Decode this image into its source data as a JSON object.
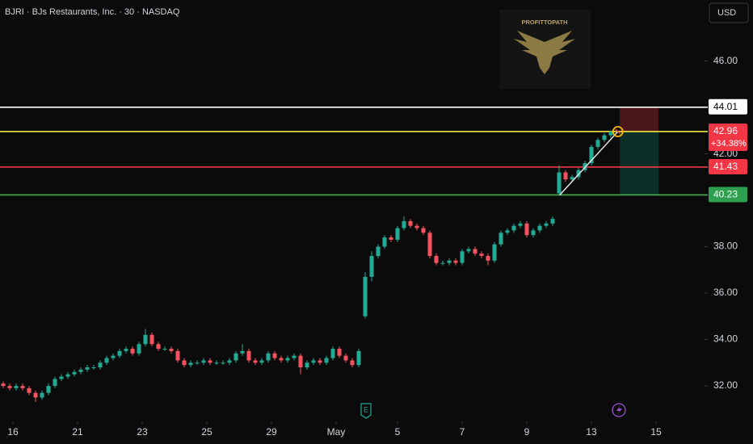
{
  "header": {
    "title": "BJRI · BJs Restaurants, Inc. · 30 · NASDAQ",
    "currency": "USD",
    "logo": "PROFITTOPATH",
    "earnings_marker": "E"
  },
  "chart_data": {
    "type": "candlestick",
    "up_color": "#22ab94",
    "down_color": "#f7525f",
    "open": [
      32.1,
      32.0,
      31.9,
      32.0,
      31.9,
      31.7,
      31.5,
      31.7,
      32.0,
      32.3,
      32.4,
      32.5,
      32.6,
      32.7,
      32.8,
      32.8,
      33.0,
      33.2,
      33.3,
      33.5,
      33.6,
      33.4,
      33.8,
      34.2,
      33.8,
      33.6,
      33.6,
      33.5,
      33.1,
      32.9,
      33.0,
      33.0,
      33.1,
      33.0,
      33.0,
      33.0,
      33.1,
      33.4,
      33.5,
      33.1,
      33.0,
      33.1,
      33.4,
      33.2,
      33.1,
      33.2,
      33.3,
      32.8,
      33.0,
      33.1,
      33.0,
      33.2,
      33.6,
      33.3,
      33.1,
      32.9,
      35.0,
      36.7,
      37.6,
      38.0,
      38.4,
      38.3,
      38.8,
      39.1,
      38.9,
      38.8,
      38.6,
      37.6,
      37.3,
      37.3,
      37.4,
      37.3,
      37.8,
      37.9,
      37.7,
      37.6,
      37.4,
      38.1,
      38.6,
      38.7,
      38.9,
      39.0,
      38.5,
      38.7,
      38.9,
      39.0,
      40.3,
      41.2,
      40.9,
      41.0,
      41.3,
      41.6,
      42.3,
      42.6,
      42.8
    ],
    "high": [
      32.2,
      32.1,
      32.1,
      32.1,
      32.0,
      31.8,
      31.8,
      32.1,
      32.4,
      32.5,
      32.6,
      32.7,
      32.8,
      32.9,
      32.9,
      33.1,
      33.3,
      33.4,
      33.6,
      33.7,
      33.7,
      33.9,
      34.45,
      34.3,
      33.9,
      33.7,
      33.7,
      33.6,
      33.2,
      33.1,
      33.1,
      33.2,
      33.2,
      33.1,
      33.1,
      33.2,
      33.5,
      33.8,
      33.6,
      33.2,
      33.2,
      33.5,
      33.5,
      33.3,
      33.3,
      33.4,
      33.4,
      33.1,
      33.2,
      33.2,
      33.3,
      33.7,
      33.7,
      33.4,
      33.2,
      33.6,
      36.9,
      37.8,
      38.1,
      38.5,
      38.5,
      38.9,
      39.3,
      39.2,
      39.0,
      38.9,
      38.7,
      37.7,
      37.4,
      37.5,
      37.5,
      37.9,
      38.0,
      38.0,
      37.8,
      37.7,
      38.2,
      38.7,
      38.8,
      39.0,
      39.1,
      39.1,
      38.8,
      39.0,
      39.1,
      39.3,
      41.5,
      41.3,
      41.1,
      41.4,
      41.7,
      42.4,
      42.7,
      42.9,
      43.0
    ],
    "low": [
      31.9,
      31.8,
      31.8,
      31.8,
      31.6,
      31.3,
      31.4,
      31.6,
      31.9,
      32.2,
      32.3,
      32.4,
      32.5,
      32.6,
      32.7,
      32.7,
      32.9,
      33.1,
      33.2,
      33.4,
      33.3,
      33.3,
      33.7,
      33.7,
      33.5,
      33.5,
      33.4,
      33.0,
      32.8,
      32.8,
      32.9,
      32.9,
      32.9,
      32.9,
      32.9,
      32.9,
      33.0,
      33.3,
      33.0,
      32.9,
      32.9,
      33.0,
      33.1,
      33.0,
      33.0,
      33.1,
      32.5,
      32.7,
      32.9,
      32.9,
      32.9,
      33.1,
      33.2,
      33.0,
      32.8,
      32.8,
      34.9,
      36.5,
      37.5,
      37.9,
      38.2,
      38.2,
      38.7,
      38.8,
      38.7,
      38.5,
      37.5,
      37.2,
      37.2,
      37.2,
      37.2,
      37.2,
      37.7,
      37.6,
      37.5,
      37.2,
      37.3,
      38.0,
      38.5,
      38.6,
      38.8,
      38.4,
      38.4,
      38.6,
      38.8,
      38.9,
      40.2,
      40.8,
      40.8,
      40.9,
      41.2,
      41.5,
      42.2,
      42.5,
      42.7
    ],
    "close": [
      32.0,
      31.9,
      32.0,
      31.9,
      31.7,
      31.5,
      31.7,
      32.0,
      32.3,
      32.4,
      32.5,
      32.6,
      32.7,
      32.8,
      32.8,
      33.0,
      33.2,
      33.3,
      33.5,
      33.6,
      33.4,
      33.8,
      34.2,
      33.8,
      33.6,
      33.6,
      33.5,
      33.1,
      32.9,
      33.0,
      33.0,
      33.1,
      33.0,
      33.0,
      33.0,
      33.1,
      33.4,
      33.5,
      33.1,
      33.0,
      33.1,
      33.4,
      33.2,
      33.1,
      33.2,
      33.3,
      32.8,
      33.0,
      33.1,
      33.0,
      33.2,
      33.6,
      33.3,
      33.1,
      32.9,
      33.5,
      36.7,
      37.6,
      38.0,
      38.4,
      38.3,
      38.8,
      39.1,
      38.9,
      38.8,
      38.6,
      37.6,
      37.3,
      37.3,
      37.4,
      37.3,
      37.8,
      37.9,
      37.7,
      37.6,
      37.4,
      38.1,
      38.6,
      38.7,
      38.9,
      39.0,
      38.5,
      38.7,
      38.9,
      39.0,
      39.2,
      41.2,
      40.9,
      41.0,
      41.3,
      41.6,
      42.3,
      42.6,
      42.8,
      42.96
    ],
    "xlim": [
      -0.5,
      108.25
    ],
    "xticks": [
      {
        "value": 1.5,
        "label": "16"
      },
      {
        "value": 11.5,
        "label": "21"
      },
      {
        "value": 21.5,
        "label": "23"
      },
      {
        "value": 31.5,
        "label": "25"
      },
      {
        "value": 41.5,
        "label": "29"
      },
      {
        "value": 51.5,
        "label": "May"
      },
      {
        "value": 61,
        "label": "5"
      },
      {
        "value": 71,
        "label": "7"
      },
      {
        "value": 81,
        "label": "9"
      },
      {
        "value": 91,
        "label": "13"
      },
      {
        "value": 101,
        "label": "15"
      }
    ],
    "ylim": [
      30.54,
      48.63
    ],
    "yticks": [
      {
        "value": 32,
        "label": "32.00"
      },
      {
        "value": 34,
        "label": "34.00"
      },
      {
        "value": 36,
        "label": "36.00"
      },
      {
        "value": 38,
        "label": "38.00"
      },
      {
        "value": 42,
        "label": "42.00"
      },
      {
        "value": 46,
        "label": "46.00"
      }
    ],
    "levels": [
      {
        "value": 44.01,
        "color": "#ffffff",
        "label_color": "#ffffff",
        "text_color": "#000000"
      },
      {
        "value": 42.96,
        "color": "#f5e84a",
        "label_color": "#f23645",
        "text_color": "#ffffff",
        "change": "+34.38%"
      },
      {
        "value": 41.43,
        "color": "#f23645",
        "label_color": "#f23645",
        "text_color": "#ffffff"
      },
      {
        "value": 40.23,
        "color": "#4caf50",
        "label_color": "#2e9e4f",
        "text_color": "#ffffff"
      }
    ],
    "trendline": {
      "x": [
        86.1,
        95.1
      ],
      "values": [
        40.23,
        42.96
      ],
      "color": "#e6e6e6"
    },
    "position": {
      "x": [
        95.4,
        101.4
      ],
      "stop": 44.01,
      "entry": 42.96,
      "target": 40.23
    }
  }
}
